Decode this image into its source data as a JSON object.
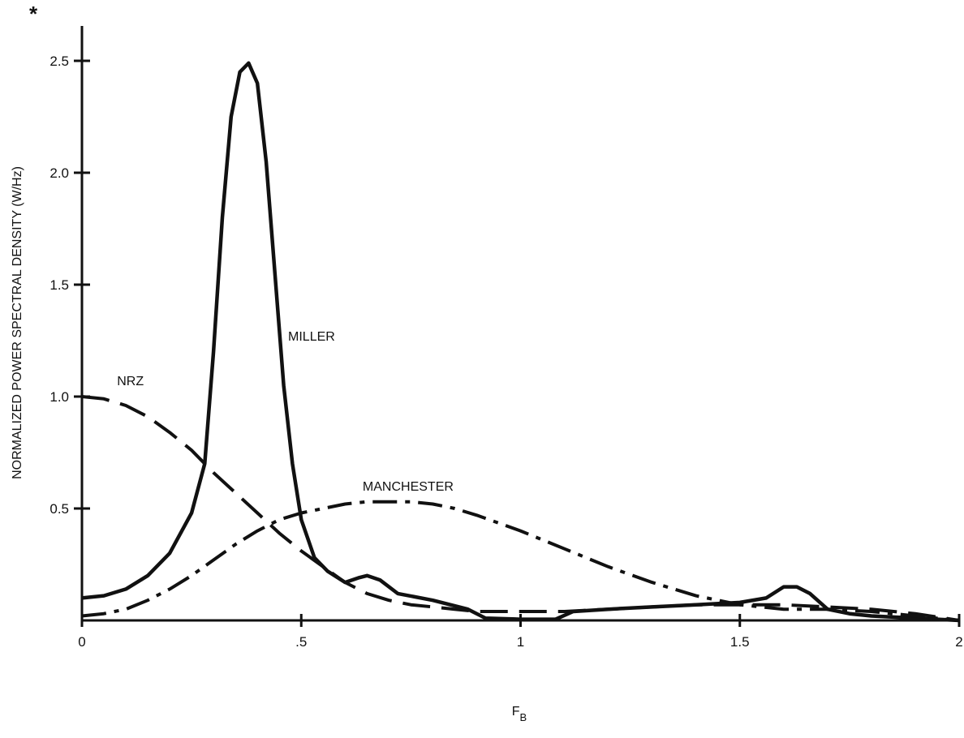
{
  "figure": {
    "marker": "*"
  },
  "chart_data": {
    "type": "line",
    "title": "",
    "xlabel": "F",
    "xlabel_subscript": "B",
    "ylabel": "NORMALIZED POWER SPECTRAL DENSITY (W/Hz)",
    "xlim": [
      0,
      2
    ],
    "ylim": [
      0,
      2.5
    ],
    "grid": false,
    "x_ticks": [
      {
        "value": 0,
        "label": "0"
      },
      {
        "value": 0.5,
        "label": ".5"
      },
      {
        "value": 1,
        "label": "1"
      },
      {
        "value": 1.5,
        "label": "1.5"
      },
      {
        "value": 2,
        "label": "2"
      }
    ],
    "y_ticks": [
      {
        "value": 0.5,
        "label": "0.5"
      },
      {
        "value": 1.0,
        "label": "1.0"
      },
      {
        "value": 1.5,
        "label": "1.5"
      },
      {
        "value": 2.0,
        "label": "2.0"
      },
      {
        "value": 2.5,
        "label": "2.5"
      }
    ],
    "series": [
      {
        "name": "MILLER",
        "style": "solid",
        "label_at": [
          0.47,
          1.25
        ],
        "x": [
          0,
          0.05,
          0.1,
          0.15,
          0.2,
          0.25,
          0.28,
          0.3,
          0.32,
          0.34,
          0.36,
          0.38,
          0.4,
          0.42,
          0.44,
          0.46,
          0.48,
          0.5,
          0.53,
          0.56,
          0.6,
          0.63,
          0.65,
          0.68,
          0.72,
          0.8,
          0.88,
          0.92,
          1.0,
          1.08,
          1.12,
          1.2,
          1.3,
          1.4,
          1.5,
          1.56,
          1.6,
          1.63,
          1.66,
          1.7,
          1.75,
          1.8,
          1.9,
          2.0
        ],
        "y": [
          0.1,
          0.11,
          0.14,
          0.2,
          0.3,
          0.48,
          0.7,
          1.2,
          1.8,
          2.25,
          2.45,
          2.49,
          2.4,
          2.05,
          1.55,
          1.05,
          0.7,
          0.45,
          0.28,
          0.22,
          0.17,
          0.19,
          0.2,
          0.18,
          0.12,
          0.09,
          0.05,
          0.01,
          0.005,
          0.005,
          0.04,
          0.05,
          0.06,
          0.07,
          0.08,
          0.1,
          0.15,
          0.15,
          0.12,
          0.05,
          0.03,
          0.02,
          0.01,
          0.0
        ]
      },
      {
        "name": "NRZ",
        "style": "dashed",
        "label_at": [
          0.08,
          1.05
        ],
        "x": [
          0,
          0.05,
          0.1,
          0.15,
          0.2,
          0.25,
          0.3,
          0.35,
          0.4,
          0.45,
          0.5,
          0.55,
          0.6,
          0.65,
          0.7,
          0.75,
          0.8,
          0.85,
          0.9,
          1.0,
          1.1,
          1.2,
          1.3,
          1.4,
          1.5,
          1.6,
          1.7,
          1.8,
          1.9,
          2.0
        ],
        "y": [
          1.0,
          0.99,
          0.96,
          0.91,
          0.84,
          0.76,
          0.66,
          0.57,
          0.48,
          0.39,
          0.31,
          0.24,
          0.17,
          0.12,
          0.09,
          0.07,
          0.06,
          0.05,
          0.04,
          0.04,
          0.04,
          0.05,
          0.06,
          0.07,
          0.07,
          0.07,
          0.06,
          0.05,
          0.03,
          0.0
        ]
      },
      {
        "name": "MANCHESTER",
        "style": "dash-dot",
        "label_at": [
          0.64,
          0.58
        ],
        "x": [
          0,
          0.05,
          0.1,
          0.15,
          0.2,
          0.25,
          0.3,
          0.35,
          0.4,
          0.45,
          0.5,
          0.55,
          0.6,
          0.65,
          0.7,
          0.75,
          0.8,
          0.85,
          0.9,
          1.0,
          1.1,
          1.2,
          1.3,
          1.4,
          1.5,
          1.6,
          1.7,
          1.8,
          1.9,
          2.0
        ],
        "y": [
          0.02,
          0.03,
          0.05,
          0.09,
          0.14,
          0.2,
          0.27,
          0.34,
          0.4,
          0.45,
          0.48,
          0.5,
          0.52,
          0.53,
          0.53,
          0.53,
          0.52,
          0.5,
          0.47,
          0.4,
          0.32,
          0.24,
          0.17,
          0.11,
          0.07,
          0.05,
          0.05,
          0.04,
          0.02,
          0.0
        ]
      }
    ]
  }
}
